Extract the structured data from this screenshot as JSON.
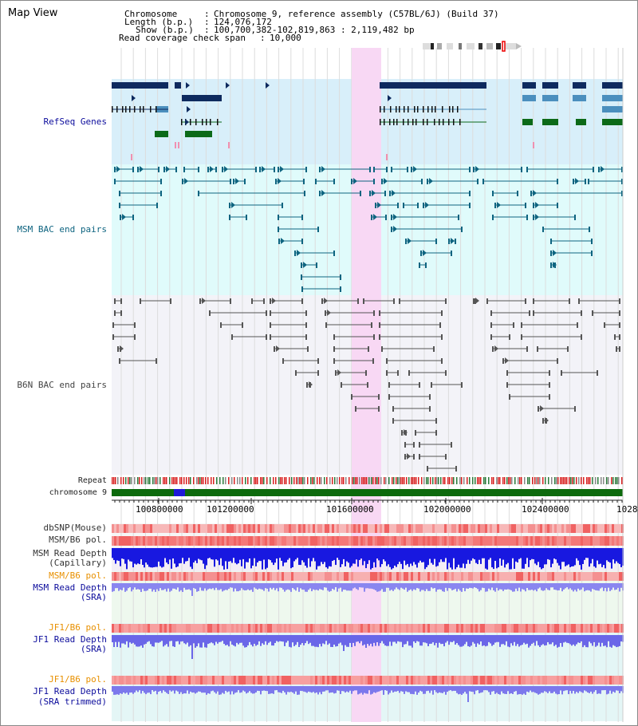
{
  "app": {
    "title": "Map View"
  },
  "header": {
    "chromosome_label": "Chromosome",
    "chromosome_value": "Chromosome 9, reference assembly (C57BL/6J) (Build 37)",
    "length_label": "Length (b.p.)",
    "length_value": "124,076,172",
    "show_label": "Show (b.p.)",
    "show_value": "100,700,382-102,819,863 : 2,119,482 bp",
    "coverage_label": "Read coverage check span",
    "coverage_value": "10,000"
  },
  "tracks": {
    "refseq": "RefSeq Genes",
    "msm_bac": "MSM BAC end pairs",
    "b6n_bac": "B6N BAC end pairs",
    "repeat": "Repeat",
    "chromosome": "chromosome 9",
    "dbsnp": "dbSNP(Mouse)",
    "msm_pol_1": "MSM/B6 pol.",
    "msm_depth_cap_1": "MSM Read Depth",
    "msm_depth_cap_2": "(Capillary)",
    "msm_pol_2": "MSM/B6 pol.",
    "msm_depth_sra_1": "MSM Read Depth",
    "msm_depth_sra_2": "(SRA)",
    "jf1_pol_1": "JF1/B6 pol.",
    "jf1_depth_sra_1": "JF1 Read Depth",
    "jf1_depth_sra_2": "(SRA)",
    "jf1_pol_2": "JF1/B6 pol.",
    "jf1_depth_trim_1": "JF1 Read Depth",
    "jf1_depth_trim_2": "(SRA trimmed)"
  },
  "axis": {
    "ticks": [
      "100800000",
      "101200000",
      "101600000",
      "102000000",
      "102400000",
      "1028"
    ]
  },
  "colors": {
    "refseq_bg": "#d8effa",
    "msm_bg": "#e0fbfb",
    "b6n_bg": "#f3f3f8",
    "highlight": "#f8d8f4",
    "gene_dark": "#0e2a5e",
    "gene_mid": "#4b8fbe",
    "gene_green": "#0c6a18",
    "msm_line": "#0e6480",
    "b6n_line": "#555555",
    "chrom_green": "#0c6a0c",
    "chrom_blue": "#1d18d8",
    "depth_blue": "#1818e0",
    "depth_light": "#8a86f0",
    "label_blue": "#0c0c9c",
    "label_teal": "#0e6480",
    "label_orange": "#e89000",
    "label_gray": "#444444"
  }
}
